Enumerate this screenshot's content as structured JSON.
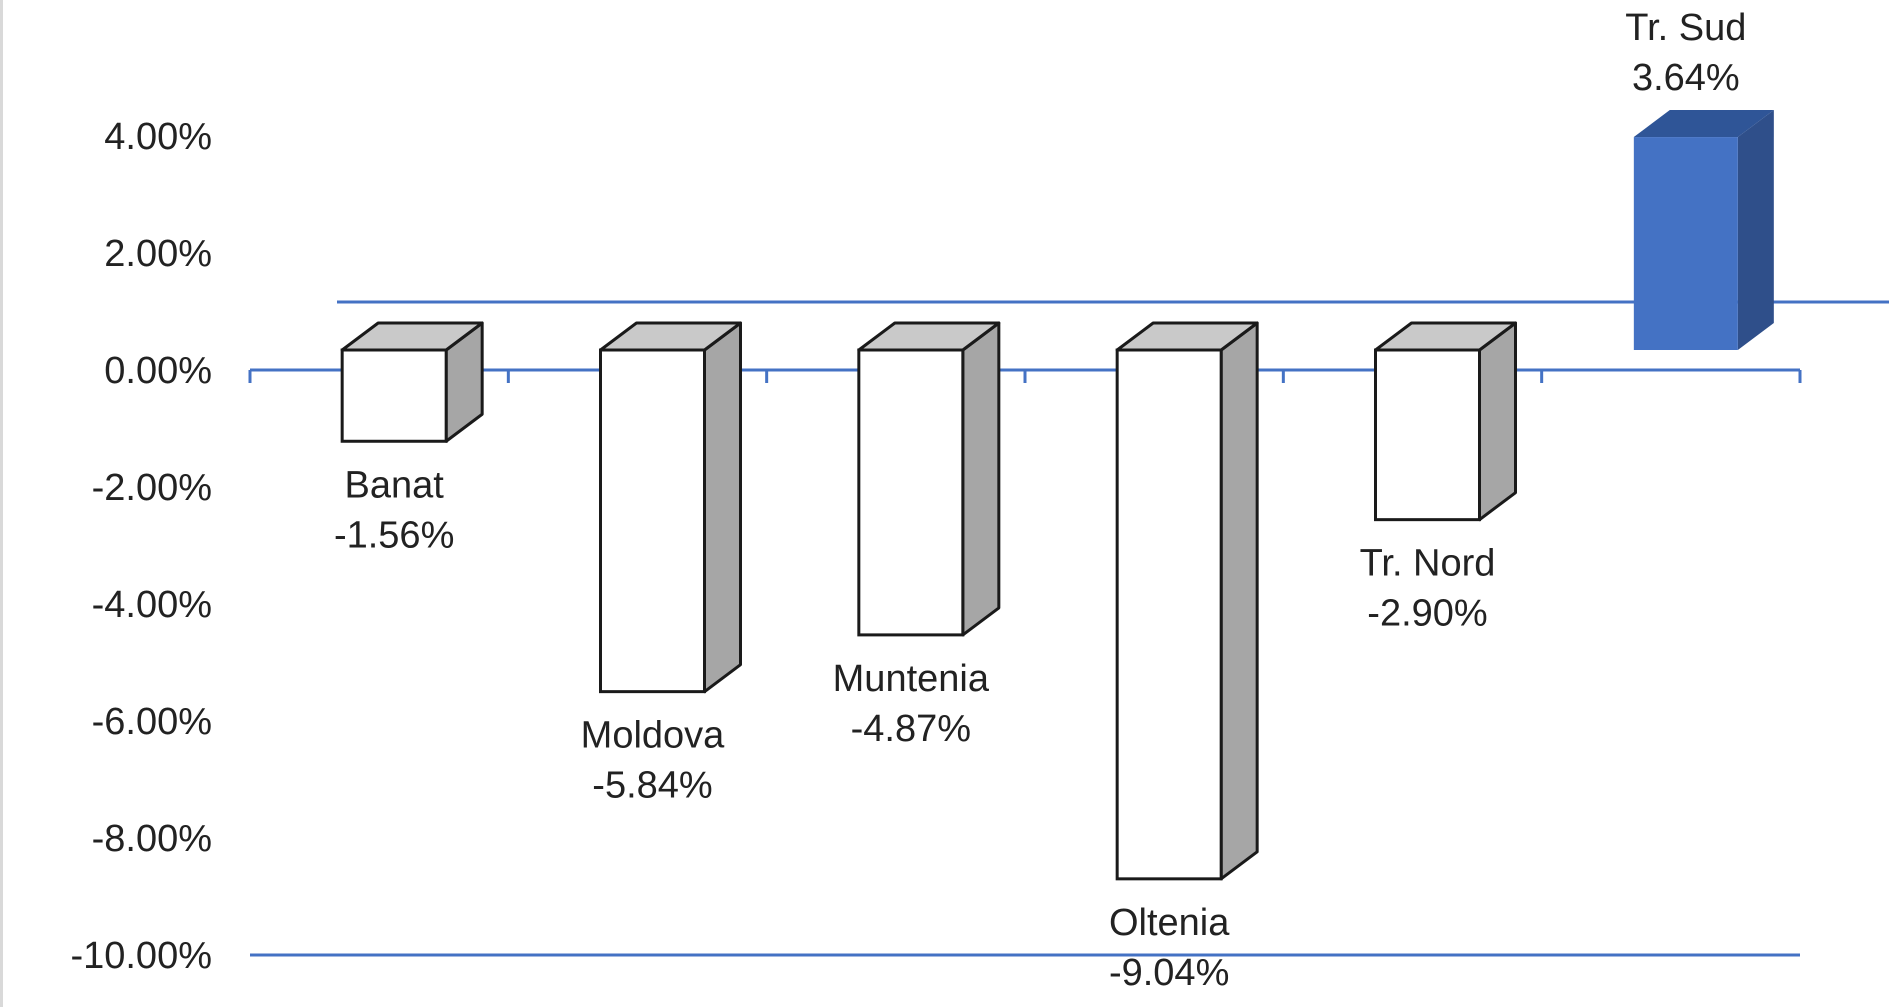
{
  "chart_data": {
    "type": "bar",
    "style": "3d-column",
    "categories": [
      "Banat",
      "Moldova",
      "Muntenia",
      "Oltenia",
      "Tr. Nord",
      "Tr. Sud"
    ],
    "values": [
      -1.56,
      -5.84,
      -4.87,
      -9.04,
      -2.9,
      3.64
    ],
    "data_labels": [
      "-1.56%",
      "-5.84%",
      "-4.87%",
      "-9.04%",
      "-2.90%",
      "3.64%"
    ],
    "y_tick_labels": [
      "4.00%",
      "2.00%",
      "0.00%",
      "-2.00%",
      "-4.00%",
      "-6.00%",
      "-8.00%",
      "-10.00%"
    ],
    "y_ticks": [
      4,
      2,
      0,
      -2,
      -4,
      -6,
      -8,
      -10
    ],
    "ylim": [
      -10,
      4
    ],
    "title": "",
    "xlabel": "",
    "ylabel": "",
    "grid": false,
    "legend": "none",
    "colors": {
      "negative_face": "#ffffff",
      "negative_side": "#a6a6a6",
      "negative_top": "#c9c9c9",
      "positive_face": "#4472c4",
      "positive_side": "#2f4f8a",
      "positive_top": "#2f5597",
      "axis": "#4472c4",
      "outline": "#1a1a1a",
      "text": "#222222"
    }
  }
}
